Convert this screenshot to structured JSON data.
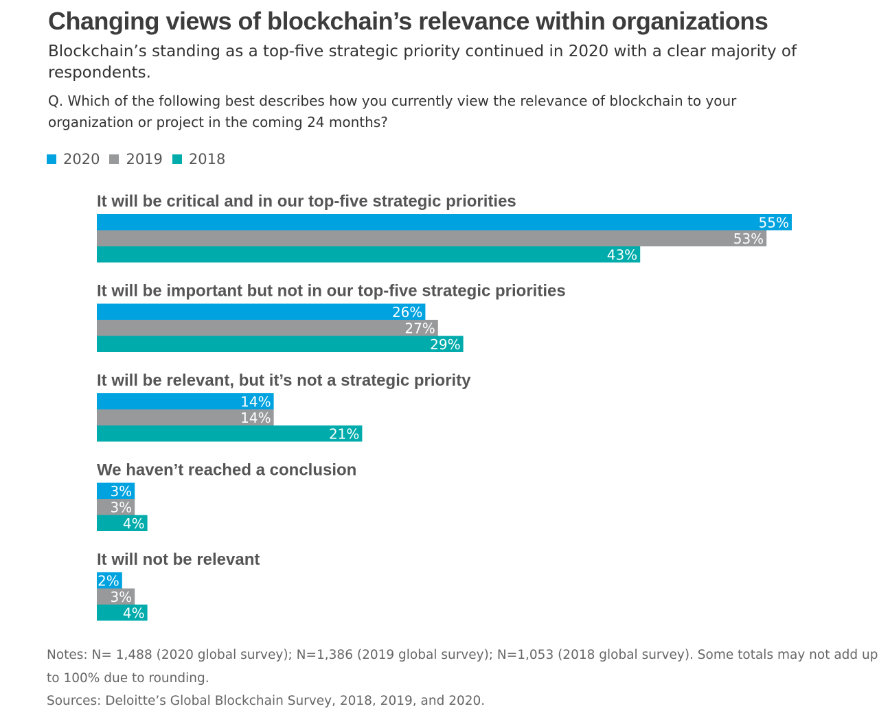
{
  "title": "Changing views of blockchain’s relevance within organizations",
  "subtitle": "Blockchain’s standing as a top-five strategic priority continued in 2020 with a clear majority of respondents.",
  "question": "Q. Which of the following best describes how you currently view the relevance of blockchain to your organization or project in the coming 24 months?",
  "notes": "Notes: N= 1,488 (2020 global survey); N=1,386 (2019 global survey); N=1,053 (2018 global survey). Some totals may not add up to 100% due to rounding.",
  "sources": "Sources: Deloitte’s Global Blockchain Survey, 2018, 2019, and 2020.",
  "chart_data": {
    "type": "bar",
    "orientation": "horizontal",
    "title": "Changing views of blockchain’s relevance within organizations",
    "value_suffix": "%",
    "xlim": [
      0,
      55
    ],
    "legend_position": "top-left",
    "grid": false,
    "categories": [
      "It will be critical and in our top-five strategic priorities",
      "It will be important but not in our top-five strategic priorities",
      "It will be relevant, but it’s not a strategic priority",
      "We haven’t reached a conclusion",
      "It will not be relevant"
    ],
    "series": [
      {
        "name": "2020",
        "color": "#00A3E0",
        "values": [
          55,
          26,
          14,
          3,
          2
        ]
      },
      {
        "name": "2019",
        "color": "#97999B",
        "values": [
          53,
          27,
          14,
          3,
          3
        ]
      },
      {
        "name": "2018",
        "color": "#00ABAB",
        "values": [
          43,
          29,
          21,
          4,
          4
        ]
      }
    ]
  }
}
